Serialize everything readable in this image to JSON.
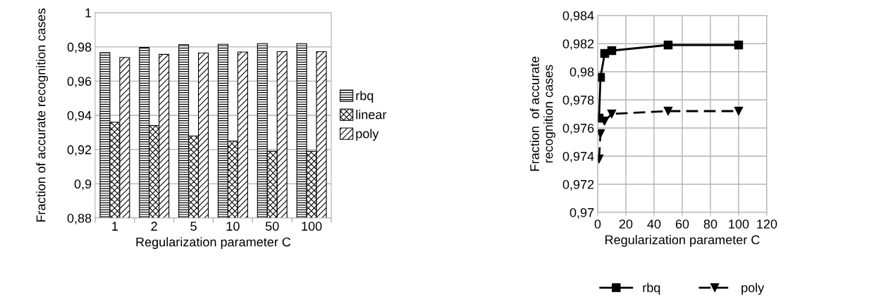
{
  "chart_data": [
    {
      "type": "bar",
      "xlabel": "Regularization parameter C",
      "ylabel": "Fraction of accurate recognition cases",
      "categories": [
        "1",
        "2",
        "5",
        "10",
        "50",
        "100"
      ],
      "series": [
        {
          "name": "rbq",
          "values": [
            0.9767,
            0.9796,
            0.9813,
            0.9815,
            0.9819,
            0.9819
          ]
        },
        {
          "name": "linear",
          "values": [
            0.936,
            0.934,
            0.928,
            0.925,
            0.919,
            0.919
          ]
        },
        {
          "name": "poly",
          "values": [
            0.9738,
            0.9756,
            0.9765,
            0.977,
            0.9772,
            0.9772
          ]
        }
      ],
      "ylim": [
        0.88,
        1
      ],
      "yticks": [
        {
          "value": 0.88,
          "label": "0,88"
        },
        {
          "value": 0.9,
          "label": "0,9"
        },
        {
          "value": 0.92,
          "label": "0,92"
        },
        {
          "value": 0.94,
          "label": "0,94"
        },
        {
          "value": 0.96,
          "label": "0,96"
        },
        {
          "value": 0.98,
          "label": "0,98"
        },
        {
          "value": 1,
          "label": "1"
        }
      ],
      "grid": "y",
      "legend": "right"
    },
    {
      "type": "line",
      "xlabel": "Regularization parameter C",
      "ylabel": "Fraction  of accurate\nrecognition cases",
      "series": [
        {
          "name": "rbq",
          "color": "#000000",
          "marker": "square",
          "line_style": "solid",
          "x": [
            1,
            2,
            5,
            10,
            50,
            100
          ],
          "values": [
            0.9767,
            0.9796,
            0.9813,
            0.9815,
            0.9819,
            0.9819
          ]
        },
        {
          "name": "poly",
          "color": "#000000",
          "marker": "triangle",
          "line_style": "dashed",
          "x": [
            1,
            2,
            5,
            10,
            50,
            100
          ],
          "values": [
            0.9738,
            0.9756,
            0.9765,
            0.977,
            0.9772,
            0.9772
          ]
        }
      ],
      "xlim": [
        0,
        120
      ],
      "xticks": [
        0,
        20,
        40,
        60,
        80,
        100,
        120
      ],
      "ylim": [
        0.97,
        0.984
      ],
      "yticks": [
        {
          "value": 0.97,
          "label": "0,97"
        },
        {
          "value": 0.972,
          "label": "0,972"
        },
        {
          "value": 0.974,
          "label": "0,974"
        },
        {
          "value": 0.976,
          "label": "0,976"
        },
        {
          "value": 0.978,
          "label": "0,978"
        },
        {
          "value": 0.98,
          "label": "0,98"
        },
        {
          "value": 0.982,
          "label": "0,982"
        },
        {
          "value": 0.984,
          "label": "0,984"
        }
      ],
      "grid": true,
      "legend": "bottom"
    }
  ]
}
